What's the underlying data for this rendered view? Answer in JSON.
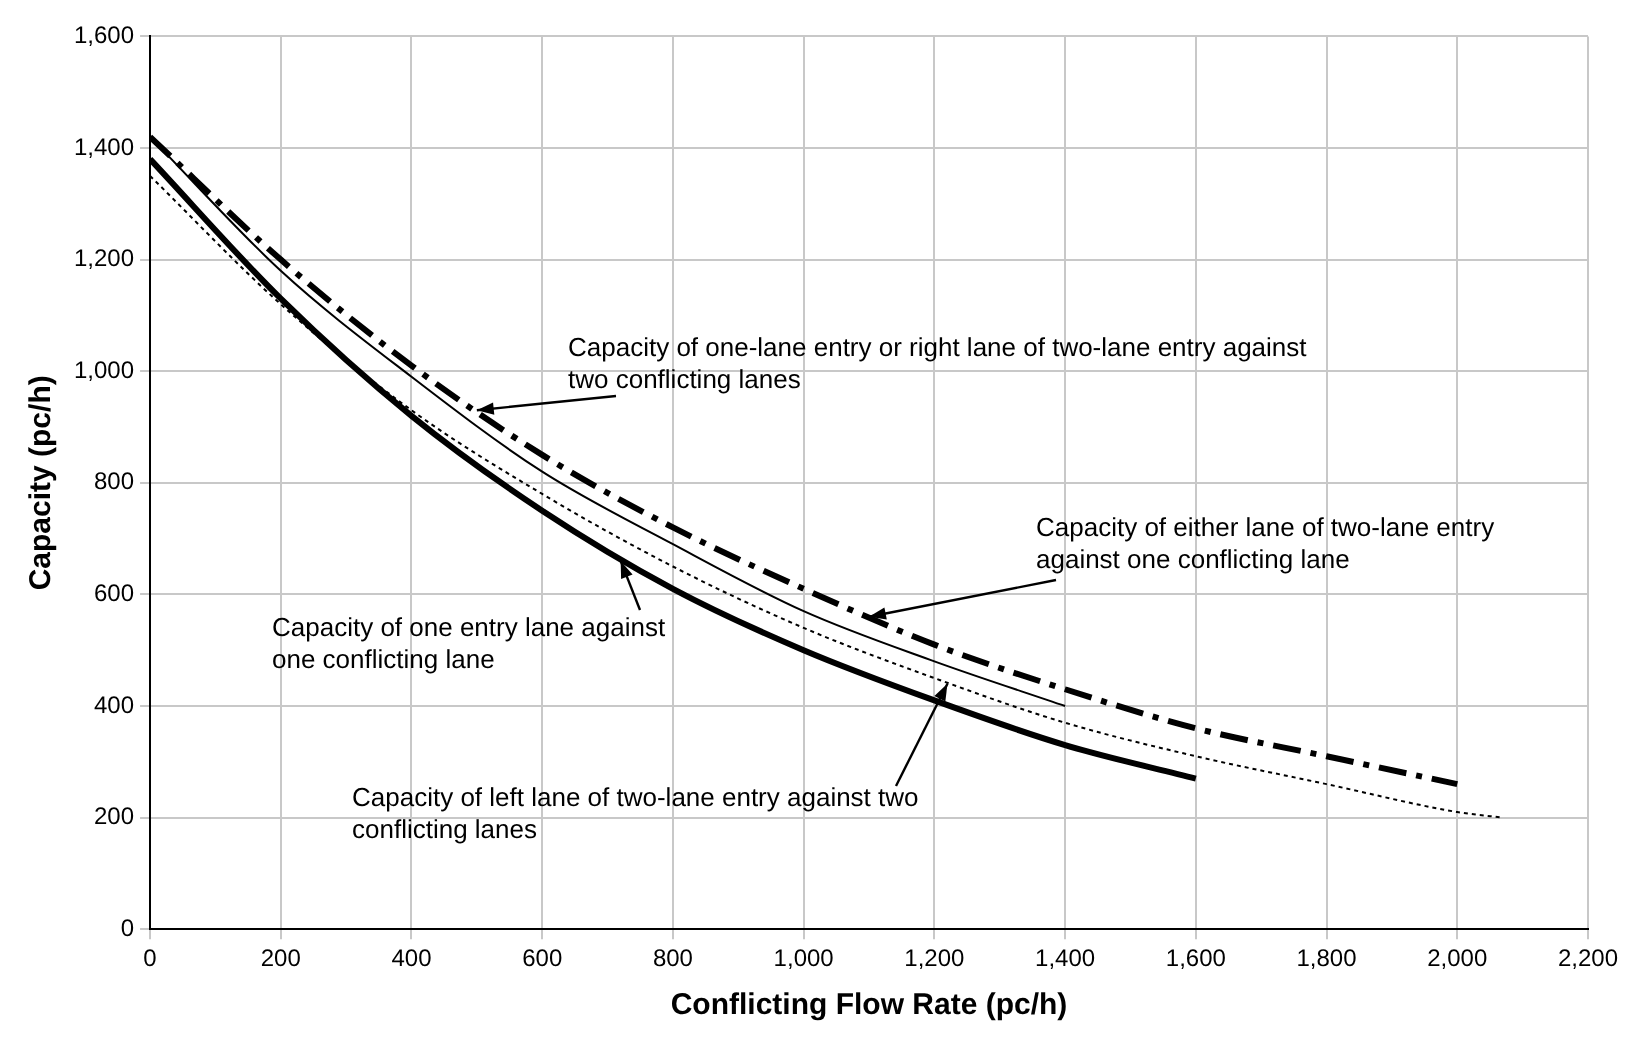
{
  "chart_data": {
    "type": "line",
    "xlabel": "Conflicting Flow Rate (pc/h)",
    "ylabel": "Capacity (pc/h)",
    "xlim": [
      0,
      2200
    ],
    "xticks": [
      0,
      200,
      400,
      600,
      800,
      {
        "value": 1000,
        "label": "1,000"
      },
      {
        "value": 1200,
        "label": "1,200"
      },
      {
        "value": 1400,
        "label": "1,400"
      },
      {
        "value": 1600,
        "label": "1,600"
      },
      {
        "value": 1800,
        "label": "1,800"
      },
      {
        "value": 2000,
        "label": "2,000"
      },
      {
        "value": 2200,
        "label": "2,200"
      }
    ],
    "ylim": [
      0,
      1600
    ],
    "yticks": [
      0,
      200,
      400,
      600,
      800,
      {
        "value": 1000,
        "label": "1,000"
      },
      {
        "value": 1200,
        "label": "1,200"
      },
      {
        "value": 1400,
        "label": "1,400"
      },
      {
        "value": 1600,
        "label": "1,600"
      }
    ],
    "grid": true,
    "legend": false,
    "marker": "none",
    "series": [
      {
        "color": "#000000",
        "line_style": "dashed",
        "x": [
          0,
          200,
          400,
          600,
          800,
          1000,
          1200,
          1400,
          1600,
          1800,
          2000
        ],
        "values": [
          1420,
          1200,
          1010,
          850,
          720,
          610,
          510,
          430,
          360,
          310,
          260
        ]
      },
      {
        "color": "#000000",
        "line_style": "solid",
        "x": [
          0,
          200,
          400,
          600,
          800,
          1000,
          1200,
          1400
        ],
        "values": [
          1420,
          1180,
          990,
          820,
          690,
          570,
          480,
          400
        ]
      },
      {
        "color": "#000000",
        "line_style": "solid",
        "x": [
          0,
          200,
          400,
          600,
          800,
          1000,
          1200,
          1400,
          1600
        ],
        "values": [
          1380,
          1130,
          920,
          750,
          610,
          500,
          410,
          330,
          270
        ]
      },
      {
        "color": "#000000",
        "line_style": "dotted",
        "x": [
          0,
          200,
          400,
          600,
          800,
          1000,
          1200,
          1400,
          1600,
          1800,
          2000,
          2070
        ],
        "values": [
          1350,
          1120,
          930,
          780,
          650,
          540,
          450,
          370,
          310,
          260,
          210,
          200
        ]
      }
    ],
    "annotations": [
      {
        "text": "Capacity of one-lane entry or right lane of two-lane entry against two conflicting lanes",
        "x": 500,
        "y": 930
      },
      {
        "text": "Capacity of either lane of two-lane entry against one conflicting lane",
        "x": 1100,
        "y": 560
      },
      {
        "text": "Capacity of one entry lane against one conflicting lane",
        "x": 720,
        "y": 660
      },
      {
        "text": "Capacity of left lane of two-lane entry against two conflicting lanes",
        "x": 1220,
        "y": 440
      }
    ]
  }
}
